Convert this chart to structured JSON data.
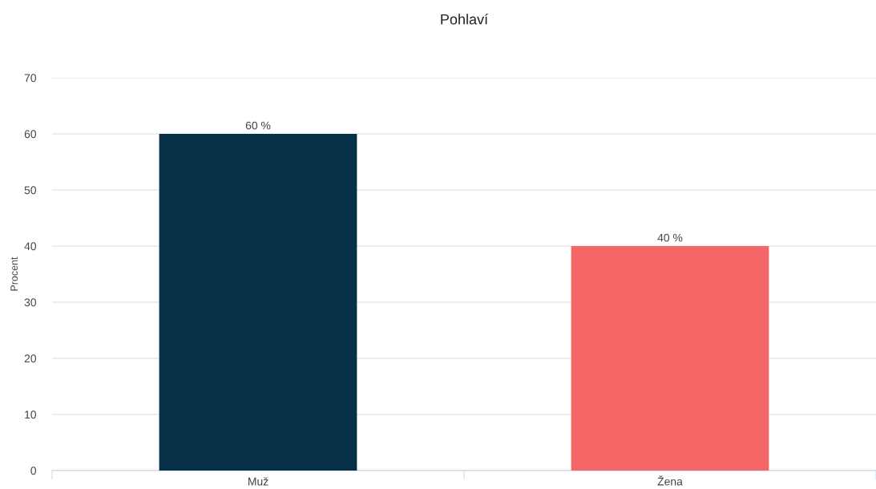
{
  "chart_data": {
    "type": "bar",
    "title": "Pohlaví",
    "ylabel": "Procent",
    "categories": [
      "Muž",
      "Žena"
    ],
    "values": [
      60,
      40
    ],
    "colors": [
      "#053047",
      "#f46565"
    ],
    "value_labels": [
      "60 %",
      "40 %"
    ],
    "ylim": [
      0,
      70
    ],
    "yticks": [
      0,
      10,
      20,
      30,
      40,
      50,
      60,
      70
    ],
    "grid": "y",
    "legend": false
  }
}
